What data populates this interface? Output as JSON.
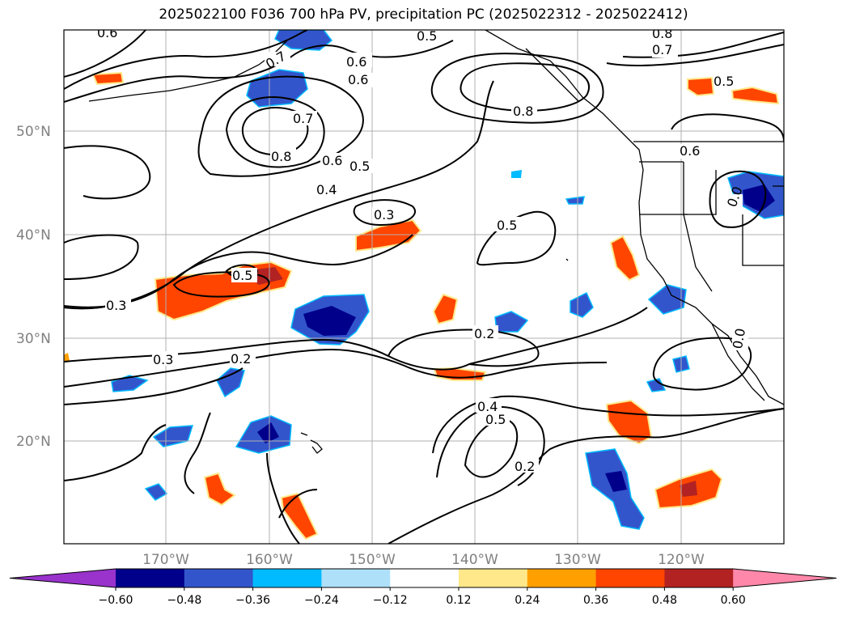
{
  "title": "2025022100 F036 700 hPa PV, precipitation PC (2025022312 - 2025022412)",
  "lat_labels": [
    "50°N",
    "40°N",
    "30°N",
    "20°N"
  ],
  "lon_labels": [
    "170°W",
    "160°W",
    "150°W",
    "140°W",
    "130°W",
    "120°W"
  ],
  "contour_labels": [
    "0.6",
    "0.5",
    "0.7",
    "0.8",
    "0.7",
    "0.6",
    "0.6",
    "0.5",
    "0.7",
    "0.8",
    "0.8",
    "0.6",
    "0.5",
    "0.4",
    "0.3",
    "0.5",
    "0.5",
    "0.3",
    "0.3",
    "0.2",
    "0.2",
    "0.4",
    "0.5",
    "0.2",
    "0.0",
    "0.0",
    "0.6"
  ],
  "colorbar": {
    "ticks": [
      "−0.60",
      "−0.48",
      "−0.36",
      "−0.24",
      "−0.12",
      "0.12",
      "0.24",
      "0.36",
      "0.48",
      "0.60"
    ],
    "colors": [
      "#9933cc",
      "#00008b",
      "#3355cc",
      "#00bbff",
      "#aee0fa",
      "#ffffff",
      "#ffe88a",
      "#ffa000",
      "#ff4500",
      "#b22222",
      "#ff88aa"
    ]
  }
}
